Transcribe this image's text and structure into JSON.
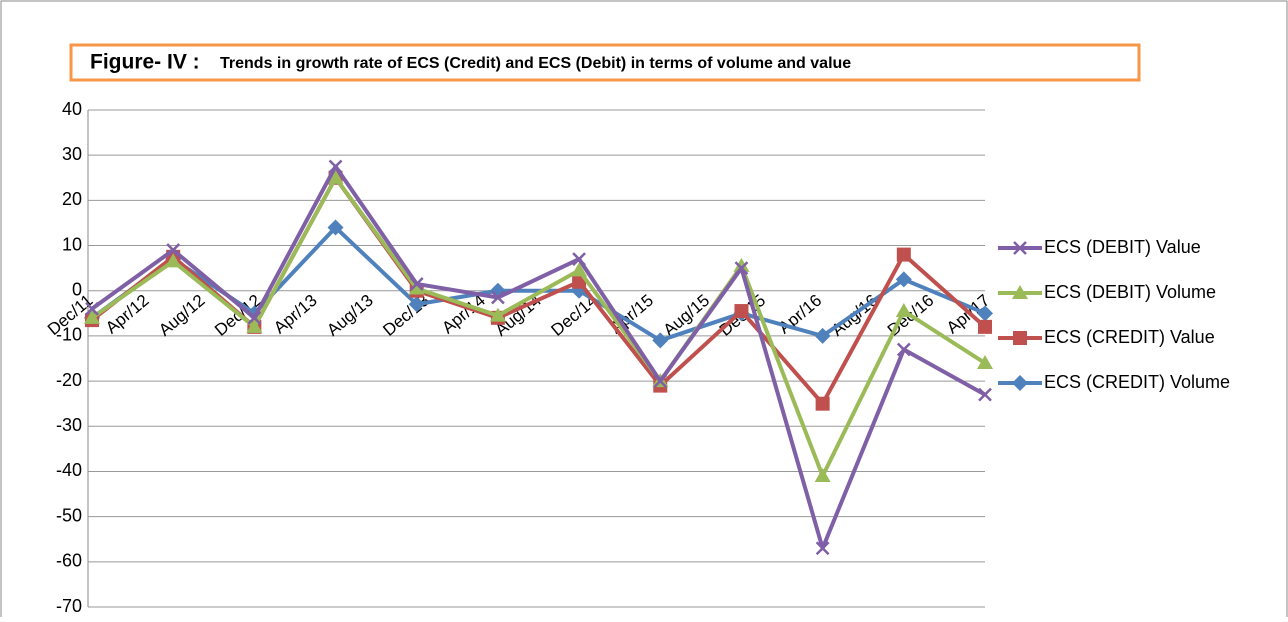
{
  "chart_data": {
    "type": "line",
    "title_label": "Figure- IV :",
    "title": "Trends in growth rate of ECS (Credit) and ECS (Debit) in terms of volume and value",
    "xtick_labels": [
      "Dec/11",
      "Apr/12",
      "Aug/12",
      "Dec/12",
      "Apr/13",
      "Aug/13",
      "Dec/13",
      "Apr/14",
      "Aug/14",
      "Dec/14",
      "Apr/15",
      "Aug/15",
      "Dec/15",
      "Apr/16",
      "Aug/16",
      "Dec/16",
      "Apr/17"
    ],
    "series": [
      {
        "name": "ECS (DEBIT) Value",
        "color": "#7f5fa5",
        "marker": "x",
        "values": [
          -4,
          9,
          -6,
          27.5,
          1.5,
          -1.5,
          7,
          -20,
          5,
          -57,
          -13,
          -23
        ]
      },
      {
        "name": "ECS (DEBIT) Volume",
        "color": "#9bbb59",
        "marker": "triangle",
        "values": [
          -6,
          6.5,
          -8,
          25,
          0.5,
          -5.5,
          4.5,
          -20,
          5.5,
          -41,
          -4.5,
          -16
        ]
      },
      {
        "name": "ECS (CREDIT) Value",
        "color": "#c0504d",
        "marker": "square",
        "values": [
          -6.5,
          7.5,
          -8,
          25,
          0,
          -6,
          2,
          -21,
          -4.5,
          -25,
          8,
          -8
        ]
      },
      {
        "name": "ECS (CREDIT) Volume",
        "color": "#4f81bd",
        "marker": "diamond",
        "values": [
          -6,
          7,
          -5,
          14,
          -3,
          0,
          0,
          -11,
          -5,
          -10,
          2.5,
          -5
        ]
      }
    ],
    "ylim": [
      -70,
      40
    ],
    "yticks": [
      -70,
      -60,
      -50,
      -40,
      -30,
      -20,
      -10,
      0,
      10,
      20,
      30,
      40
    ],
    "grid": true
  }
}
